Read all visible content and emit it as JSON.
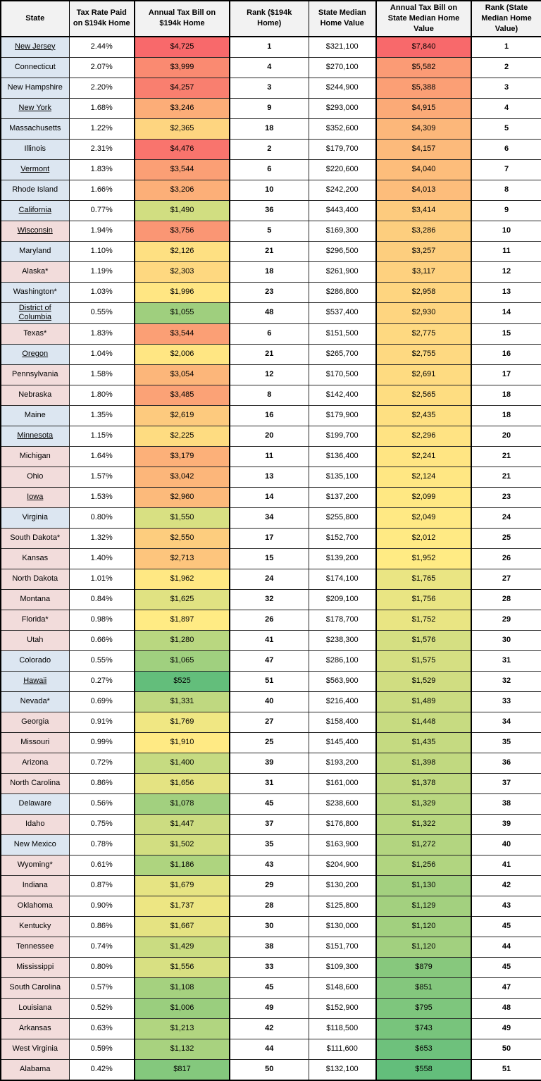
{
  "colors": {
    "state_blue": "#DCE6F1",
    "state_pink": "#F2DCDB",
    "scale_min_green": "#63BE7B",
    "scale_mid_yellow": "#FFEB84",
    "scale_max_red": "#F8696B",
    "header_bg": "#F2F2F2",
    "border": "#000000"
  },
  "chart_data": {
    "type": "table",
    "columns": [
      "State",
      "Tax Rate Paid on $194k Home",
      "Annual Tax Bill on $194k Home",
      "Rank ($194k Home)",
      "State Median Home Value",
      "Annual Tax Bill on State Median Home Value",
      "Rank (State Median Home Value)"
    ],
    "rows": [
      {
        "state": "New Jersey",
        "link": true,
        "shade": "blue",
        "tax_rate": "2.44%",
        "bill_194k": "$4,725",
        "rank_194k": "1",
        "median_home_value": "$321,100",
        "bill_median": "$7,840",
        "rank_median": "1"
      },
      {
        "state": "Connecticut",
        "link": false,
        "shade": "blue",
        "tax_rate": "2.07%",
        "bill_194k": "$3,999",
        "rank_194k": "4",
        "median_home_value": "$270,100",
        "bill_median": "$5,582",
        "rank_median": "2"
      },
      {
        "state": "New Hampshire",
        "link": false,
        "shade": "blue",
        "tax_rate": "2.20%",
        "bill_194k": "$4,257",
        "rank_194k": "3",
        "median_home_value": "$244,900",
        "bill_median": "$5,388",
        "rank_median": "3"
      },
      {
        "state": "New York",
        "link": true,
        "shade": "blue",
        "tax_rate": "1.68%",
        "bill_194k": "$3,246",
        "rank_194k": "9",
        "median_home_value": "$293,000",
        "bill_median": "$4,915",
        "rank_median": "4"
      },
      {
        "state": "Massachusetts",
        "link": false,
        "shade": "blue",
        "tax_rate": "1.22%",
        "bill_194k": "$2,365",
        "rank_194k": "18",
        "median_home_value": "$352,600",
        "bill_median": "$4,309",
        "rank_median": "5"
      },
      {
        "state": "Illinois",
        "link": false,
        "shade": "blue",
        "tax_rate": "2.31%",
        "bill_194k": "$4,476",
        "rank_194k": "2",
        "median_home_value": "$179,700",
        "bill_median": "$4,157",
        "rank_median": "6"
      },
      {
        "state": "Vermont",
        "link": true,
        "shade": "blue",
        "tax_rate": "1.83%",
        "bill_194k": "$3,544",
        "rank_194k": "6",
        "median_home_value": "$220,600",
        "bill_median": "$4,040",
        "rank_median": "7"
      },
      {
        "state": "Rhode Island",
        "link": false,
        "shade": "blue",
        "tax_rate": "1.66%",
        "bill_194k": "$3,206",
        "rank_194k": "10",
        "median_home_value": "$242,200",
        "bill_median": "$4,013",
        "rank_median": "8"
      },
      {
        "state": "California",
        "link": true,
        "shade": "blue",
        "tax_rate": "0.77%",
        "bill_194k": "$1,490",
        "rank_194k": "36",
        "median_home_value": "$443,400",
        "bill_median": "$3,414",
        "rank_median": "9"
      },
      {
        "state": "Wisconsin",
        "link": true,
        "shade": "pink",
        "tax_rate": "1.94%",
        "bill_194k": "$3,756",
        "rank_194k": "5",
        "median_home_value": "$169,300",
        "bill_median": "$3,286",
        "rank_median": "10"
      },
      {
        "state": "Maryland",
        "link": false,
        "shade": "blue",
        "tax_rate": "1.10%",
        "bill_194k": "$2,126",
        "rank_194k": "21",
        "median_home_value": "$296,500",
        "bill_median": "$3,257",
        "rank_median": "11"
      },
      {
        "state": "Alaska*",
        "link": false,
        "shade": "pink",
        "tax_rate": "1.19%",
        "bill_194k": "$2,303",
        "rank_194k": "18",
        "median_home_value": "$261,900",
        "bill_median": "$3,117",
        "rank_median": "12"
      },
      {
        "state": "Washington*",
        "link": false,
        "shade": "blue",
        "tax_rate": "1.03%",
        "bill_194k": "$1,996",
        "rank_194k": "23",
        "median_home_value": "$286,800",
        "bill_median": "$2,958",
        "rank_median": "13"
      },
      {
        "state": "District of Columbia",
        "link": true,
        "shade": "blue",
        "tax_rate": "0.55%",
        "bill_194k": "$1,055",
        "rank_194k": "48",
        "median_home_value": "$537,400",
        "bill_median": "$2,930",
        "rank_median": "14"
      },
      {
        "state": "Texas*",
        "link": false,
        "shade": "pink",
        "tax_rate": "1.83%",
        "bill_194k": "$3,544",
        "rank_194k": "6",
        "median_home_value": "$151,500",
        "bill_median": "$2,775",
        "rank_median": "15"
      },
      {
        "state": "Oregon",
        "link": true,
        "shade": "blue",
        "tax_rate": "1.04%",
        "bill_194k": "$2,006",
        "rank_194k": "21",
        "median_home_value": "$265,700",
        "bill_median": "$2,755",
        "rank_median": "16"
      },
      {
        "state": "Pennsylvania",
        "link": false,
        "shade": "pink",
        "tax_rate": "1.58%",
        "bill_194k": "$3,054",
        "rank_194k": "12",
        "median_home_value": "$170,500",
        "bill_median": "$2,691",
        "rank_median": "17"
      },
      {
        "state": "Nebraska",
        "link": false,
        "shade": "pink",
        "tax_rate": "1.80%",
        "bill_194k": "$3,485",
        "rank_194k": "8",
        "median_home_value": "$142,400",
        "bill_median": "$2,565",
        "rank_median": "18"
      },
      {
        "state": "Maine",
        "link": false,
        "shade": "blue",
        "tax_rate": "1.35%",
        "bill_194k": "$2,619",
        "rank_194k": "16",
        "median_home_value": "$179,900",
        "bill_median": "$2,435",
        "rank_median": "18"
      },
      {
        "state": "Minnesota",
        "link": true,
        "shade": "blue",
        "tax_rate": "1.15%",
        "bill_194k": "$2,225",
        "rank_194k": "20",
        "median_home_value": "$199,700",
        "bill_median": "$2,296",
        "rank_median": "20"
      },
      {
        "state": "Michigan",
        "link": false,
        "shade": "pink",
        "tax_rate": "1.64%",
        "bill_194k": "$3,179",
        "rank_194k": "11",
        "median_home_value": "$136,400",
        "bill_median": "$2,241",
        "rank_median": "21"
      },
      {
        "state": "Ohio",
        "link": false,
        "shade": "pink",
        "tax_rate": "1.57%",
        "bill_194k": "$3,042",
        "rank_194k": "13",
        "median_home_value": "$135,100",
        "bill_median": "$2,124",
        "rank_median": "21"
      },
      {
        "state": "Iowa",
        "link": true,
        "shade": "pink",
        "tax_rate": "1.53%",
        "bill_194k": "$2,960",
        "rank_194k": "14",
        "median_home_value": "$137,200",
        "bill_median": "$2,099",
        "rank_median": "23"
      },
      {
        "state": "Virginia",
        "link": false,
        "shade": "blue",
        "tax_rate": "0.80%",
        "bill_194k": "$1,550",
        "rank_194k": "34",
        "median_home_value": "$255,800",
        "bill_median": "$2,049",
        "rank_median": "24"
      },
      {
        "state": "South Dakota*",
        "link": false,
        "shade": "pink",
        "tax_rate": "1.32%",
        "bill_194k": "$2,550",
        "rank_194k": "17",
        "median_home_value": "$152,700",
        "bill_median": "$2,012",
        "rank_median": "25"
      },
      {
        "state": "Kansas",
        "link": false,
        "shade": "pink",
        "tax_rate": "1.40%",
        "bill_194k": "$2,713",
        "rank_194k": "15",
        "median_home_value": "$139,200",
        "bill_median": "$1,952",
        "rank_median": "26"
      },
      {
        "state": "North Dakota",
        "link": false,
        "shade": "pink",
        "tax_rate": "1.01%",
        "bill_194k": "$1,962",
        "rank_194k": "24",
        "median_home_value": "$174,100",
        "bill_median": "$1,765",
        "rank_median": "27"
      },
      {
        "state": "Montana",
        "link": false,
        "shade": "pink",
        "tax_rate": "0.84%",
        "bill_194k": "$1,625",
        "rank_194k": "32",
        "median_home_value": "$209,100",
        "bill_median": "$1,756",
        "rank_median": "28"
      },
      {
        "state": "Florida*",
        "link": false,
        "shade": "pink",
        "tax_rate": "0.98%",
        "bill_194k": "$1,897",
        "rank_194k": "26",
        "median_home_value": "$178,700",
        "bill_median": "$1,752",
        "rank_median": "29"
      },
      {
        "state": "Utah",
        "link": false,
        "shade": "pink",
        "tax_rate": "0.66%",
        "bill_194k": "$1,280",
        "rank_194k": "41",
        "median_home_value": "$238,300",
        "bill_median": "$1,576",
        "rank_median": "30"
      },
      {
        "state": "Colorado",
        "link": false,
        "shade": "blue",
        "tax_rate": "0.55%",
        "bill_194k": "$1,065",
        "rank_194k": "47",
        "median_home_value": "$286,100",
        "bill_median": "$1,575",
        "rank_median": "31"
      },
      {
        "state": "Hawaii",
        "link": true,
        "shade": "blue",
        "tax_rate": "0.27%",
        "bill_194k": "$525",
        "rank_194k": "51",
        "median_home_value": "$563,900",
        "bill_median": "$1,529",
        "rank_median": "32"
      },
      {
        "state": "Nevada*",
        "link": false,
        "shade": "blue",
        "tax_rate": "0.69%",
        "bill_194k": "$1,331",
        "rank_194k": "40",
        "median_home_value": "$216,400",
        "bill_median": "$1,489",
        "rank_median": "33"
      },
      {
        "state": "Georgia",
        "link": false,
        "shade": "pink",
        "tax_rate": "0.91%",
        "bill_194k": "$1,769",
        "rank_194k": "27",
        "median_home_value": "$158,400",
        "bill_median": "$1,448",
        "rank_median": "34"
      },
      {
        "state": "Missouri",
        "link": false,
        "shade": "pink",
        "tax_rate": "0.99%",
        "bill_194k": "$1,910",
        "rank_194k": "25",
        "median_home_value": "$145,400",
        "bill_median": "$1,435",
        "rank_median": "35"
      },
      {
        "state": "Arizona",
        "link": false,
        "shade": "pink",
        "tax_rate": "0.72%",
        "bill_194k": "$1,400",
        "rank_194k": "39",
        "median_home_value": "$193,200",
        "bill_median": "$1,398",
        "rank_median": "36"
      },
      {
        "state": "North Carolina",
        "link": false,
        "shade": "pink",
        "tax_rate": "0.86%",
        "bill_194k": "$1,656",
        "rank_194k": "31",
        "median_home_value": "$161,000",
        "bill_median": "$1,378",
        "rank_median": "37"
      },
      {
        "state": "Delaware",
        "link": false,
        "shade": "blue",
        "tax_rate": "0.56%",
        "bill_194k": "$1,078",
        "rank_194k": "45",
        "median_home_value": "$238,600",
        "bill_median": "$1,329",
        "rank_median": "38"
      },
      {
        "state": "Idaho",
        "link": false,
        "shade": "pink",
        "tax_rate": "0.75%",
        "bill_194k": "$1,447",
        "rank_194k": "37",
        "median_home_value": "$176,800",
        "bill_median": "$1,322",
        "rank_median": "39"
      },
      {
        "state": "New Mexico",
        "link": false,
        "shade": "blue",
        "tax_rate": "0.78%",
        "bill_194k": "$1,502",
        "rank_194k": "35",
        "median_home_value": "$163,900",
        "bill_median": "$1,272",
        "rank_median": "40"
      },
      {
        "state": "Wyoming*",
        "link": false,
        "shade": "pink",
        "tax_rate": "0.61%",
        "bill_194k": "$1,186",
        "rank_194k": "43",
        "median_home_value": "$204,900",
        "bill_median": "$1,256",
        "rank_median": "41"
      },
      {
        "state": "Indiana",
        "link": false,
        "shade": "pink",
        "tax_rate": "0.87%",
        "bill_194k": "$1,679",
        "rank_194k": "29",
        "median_home_value": "$130,200",
        "bill_median": "$1,130",
        "rank_median": "42"
      },
      {
        "state": "Oklahoma",
        "link": false,
        "shade": "pink",
        "tax_rate": "0.90%",
        "bill_194k": "$1,737",
        "rank_194k": "28",
        "median_home_value": "$125,800",
        "bill_median": "$1,129",
        "rank_median": "43"
      },
      {
        "state": "Kentucky",
        "link": false,
        "shade": "pink",
        "tax_rate": "0.86%",
        "bill_194k": "$1,667",
        "rank_194k": "30",
        "median_home_value": "$130,000",
        "bill_median": "$1,120",
        "rank_median": "45"
      },
      {
        "state": "Tennessee",
        "link": false,
        "shade": "pink",
        "tax_rate": "0.74%",
        "bill_194k": "$1,429",
        "rank_194k": "38",
        "median_home_value": "$151,700",
        "bill_median": "$1,120",
        "rank_median": "44"
      },
      {
        "state": "Mississippi",
        "link": false,
        "shade": "pink",
        "tax_rate": "0.80%",
        "bill_194k": "$1,556",
        "rank_194k": "33",
        "median_home_value": "$109,300",
        "bill_median": "$879",
        "rank_median": "45"
      },
      {
        "state": "South Carolina",
        "link": false,
        "shade": "pink",
        "tax_rate": "0.57%",
        "bill_194k": "$1,108",
        "rank_194k": "45",
        "median_home_value": "$148,600",
        "bill_median": "$851",
        "rank_median": "47"
      },
      {
        "state": "Louisiana",
        "link": false,
        "shade": "pink",
        "tax_rate": "0.52%",
        "bill_194k": "$1,006",
        "rank_194k": "49",
        "median_home_value": "$152,900",
        "bill_median": "$795",
        "rank_median": "48"
      },
      {
        "state": "Arkansas",
        "link": false,
        "shade": "pink",
        "tax_rate": "0.63%",
        "bill_194k": "$1,213",
        "rank_194k": "42",
        "median_home_value": "$118,500",
        "bill_median": "$743",
        "rank_median": "49"
      },
      {
        "state": "West Virginia",
        "link": false,
        "shade": "pink",
        "tax_rate": "0.59%",
        "bill_194k": "$1,132",
        "rank_194k": "44",
        "median_home_value": "$111,600",
        "bill_median": "$653",
        "rank_median": "50"
      },
      {
        "state": "Alabama",
        "link": false,
        "shade": "pink",
        "tax_rate": "0.42%",
        "bill_194k": "$817",
        "rank_194k": "50",
        "median_home_value": "$132,100",
        "bill_median": "$558",
        "rank_median": "51"
      }
    ]
  }
}
